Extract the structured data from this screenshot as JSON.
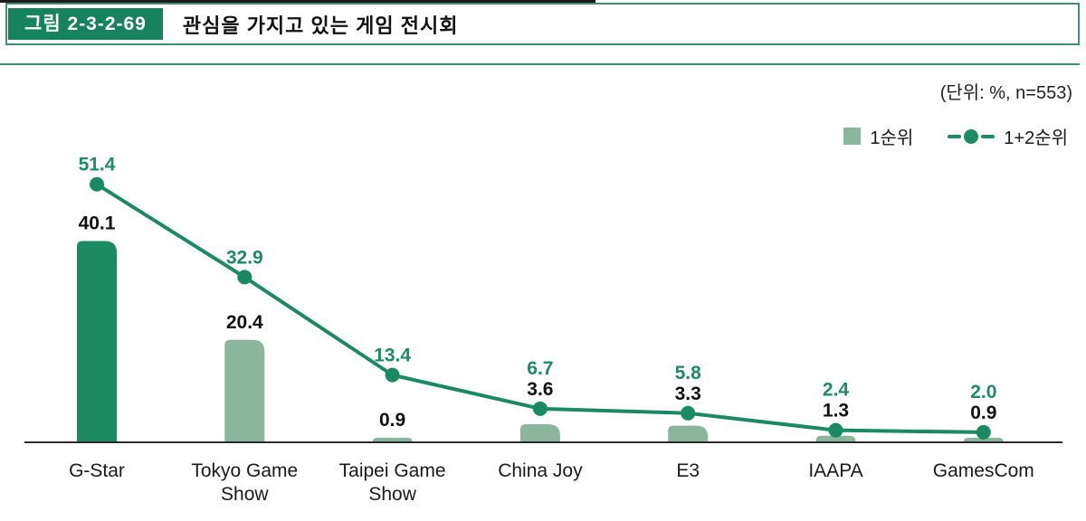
{
  "header": {
    "figure_label": "그림 2-3-2-69",
    "title": "관심을 가지고 있는 게임 전시회"
  },
  "unit_note": "(단위: %, n=553)",
  "legend": {
    "items": [
      {
        "label": "1순위",
        "marker": "square-icon",
        "color": "#8CB59E"
      },
      {
        "label": "1+2순위",
        "marker": "line-dot-icon",
        "color": "#1D8B64"
      }
    ]
  },
  "colors": {
    "dark_green": "#1B8A63",
    "light_green": "#8CB59E",
    "header_green": "#17825E",
    "border_green": "#3F8F70",
    "axis": "#2b2b2b",
    "text_dark": "#111111"
  },
  "chart_data": {
    "type": "bar",
    "title": "관심을 가지고 있는 게임 전시회",
    "unit": "%",
    "n_label": "n=553",
    "categories": [
      "G-Star",
      "Tokyo Game Show",
      "Taipei Game Show",
      "China Joy",
      "E3",
      "IAAPA",
      "GamesCom"
    ],
    "category_lines": [
      [
        "G-Star"
      ],
      [
        "Tokyo Game",
        "Show"
      ],
      [
        "Taipei Game",
        "Show"
      ],
      [
        "China Joy"
      ],
      [
        "E3"
      ],
      [
        "IAAPA"
      ],
      [
        "GamesCom"
      ]
    ],
    "series": [
      {
        "name": "1순위",
        "type": "bar",
        "values": [
          40.1,
          20.4,
          0.9,
          3.6,
          3.3,
          1.3,
          0.9
        ]
      },
      {
        "name": "1+2순위",
        "type": "line",
        "values": [
          51.4,
          32.9,
          13.4,
          6.7,
          5.8,
          2.4,
          2.0
        ]
      }
    ],
    "highlight_category_index": 0,
    "ylim": [
      0,
      60
    ],
    "grid": false,
    "legend_position": "top-right",
    "xlabel": "",
    "ylabel": ""
  }
}
